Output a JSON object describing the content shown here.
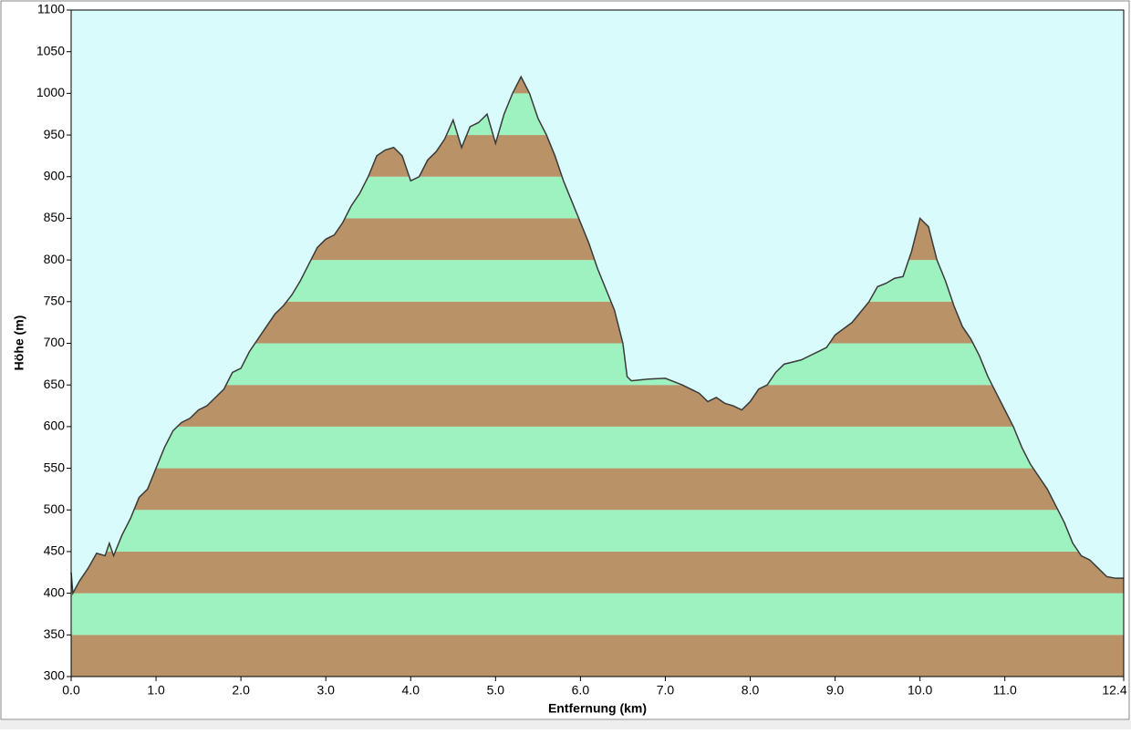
{
  "chart_data": {
    "type": "area",
    "x_label": "Entfernung  (km)",
    "y_label": "Höhe (m)",
    "xlim": [
      0,
      12.4
    ],
    "ylim": [
      300,
      1100
    ],
    "xticks": [
      {
        "value": 0,
        "label": "0.0"
      },
      {
        "value": 1,
        "label": "1.0"
      },
      {
        "value": 2,
        "label": "2.0"
      },
      {
        "value": 3,
        "label": "3.0"
      },
      {
        "value": 4,
        "label": "4.0"
      },
      {
        "value": 5,
        "label": "5.0"
      },
      {
        "value": 6,
        "label": "6.0"
      },
      {
        "value": 7,
        "label": "7.0"
      },
      {
        "value": 8,
        "label": "8.0"
      },
      {
        "value": 9,
        "label": "9.0"
      },
      {
        "value": 10,
        "label": "10.0"
      },
      {
        "value": 11,
        "label": "11.0"
      },
      {
        "value": 12.4,
        "label": "12.4"
      }
    ],
    "yticks": [
      300,
      350,
      400,
      450,
      500,
      550,
      600,
      650,
      700,
      750,
      800,
      850,
      900,
      950,
      1000,
      1050,
      1100
    ],
    "background": "#d9fbfb",
    "line_color": "#3a3a3a",
    "band_colors": [
      "#b99268",
      "#9df2bf"
    ],
    "x": [
      0,
      0.02,
      0.1,
      0.2,
      0.3,
      0.4,
      0.45,
      0.5,
      0.6,
      0.7,
      0.8,
      0.9,
      1.0,
      1.1,
      1.2,
      1.3,
      1.4,
      1.5,
      1.6,
      1.7,
      1.8,
      1.9,
      2.0,
      2.1,
      2.2,
      2.3,
      2.4,
      2.5,
      2.6,
      2.7,
      2.8,
      2.9,
      3.0,
      3.1,
      3.2,
      3.3,
      3.4,
      3.5,
      3.6,
      3.7,
      3.8,
      3.9,
      4.0,
      4.1,
      4.2,
      4.3,
      4.4,
      4.5,
      4.6,
      4.7,
      4.8,
      4.9,
      5.0,
      5.1,
      5.2,
      5.3,
      5.4,
      5.5,
      5.6,
      5.7,
      5.8,
      5.9,
      6.0,
      6.1,
      6.2,
      6.3,
      6.4,
      6.5,
      6.55,
      6.6,
      6.8,
      7.0,
      7.2,
      7.4,
      7.5,
      7.6,
      7.7,
      7.8,
      7.9,
      8.0,
      8.1,
      8.2,
      8.3,
      8.4,
      8.6,
      8.8,
      8.9,
      9.0,
      9.2,
      9.4,
      9.5,
      9.6,
      9.7,
      9.8,
      9.9,
      10.0,
      10.1,
      10.2,
      10.3,
      10.4,
      10.5,
      10.6,
      10.7,
      10.8,
      10.9,
      11.0,
      11.1,
      11.2,
      11.3,
      11.4,
      11.5,
      11.6,
      11.7,
      11.8,
      11.9,
      12.0,
      12.1,
      12.2,
      12.3,
      12.4
    ],
    "values": [
      425,
      400,
      415,
      430,
      448,
      445,
      460,
      445,
      470,
      490,
      515,
      525,
      550,
      575,
      595,
      605,
      610,
      620,
      625,
      635,
      645,
      665,
      670,
      690,
      705,
      720,
      735,
      745,
      758,
      775,
      795,
      815,
      825,
      830,
      845,
      865,
      880,
      900,
      925,
      932,
      935,
      925,
      895,
      900,
      920,
      930,
      945,
      968,
      935,
      960,
      965,
      975,
      940,
      975,
      1000,
      1020,
      1000,
      970,
      950,
      925,
      895,
      870,
      845,
      820,
      790,
      765,
      740,
      700,
      660,
      655,
      657,
      658,
      650,
      640,
      630,
      635,
      628,
      625,
      620,
      630,
      645,
      650,
      665,
      675,
      680,
      690,
      695,
      710,
      725,
      750,
      768,
      772,
      778,
      780,
      810,
      850,
      840,
      800,
      775,
      745,
      720,
      705,
      685,
      660,
      640,
      620,
      600,
      575,
      555,
      540,
      525,
      505,
      485,
      460,
      445,
      440,
      430,
      420,
      418,
      418
    ]
  }
}
